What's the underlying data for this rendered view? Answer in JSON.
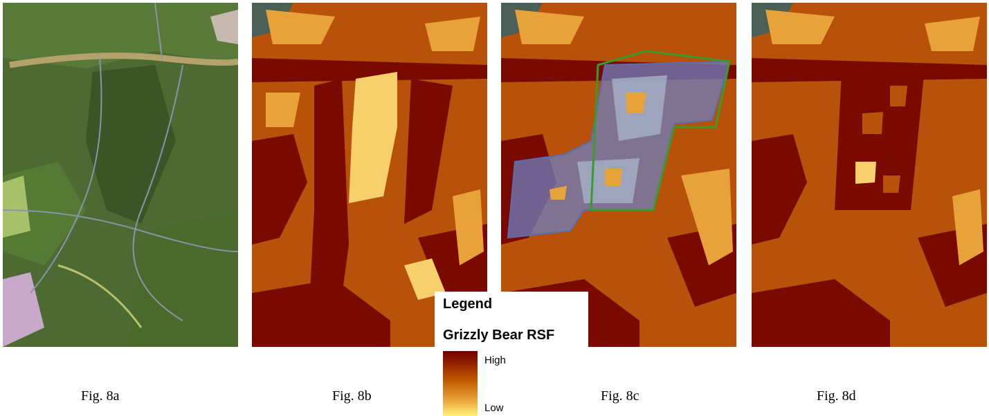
{
  "figures": [
    {
      "id": "a",
      "caption": "Fig. 8a",
      "kind": "satellite-image"
    },
    {
      "id": "b",
      "caption": "Fig. 8b",
      "kind": "rsf-map"
    },
    {
      "id": "c",
      "caption": "Fig. 8c",
      "kind": "rsf-map-with-overlay"
    },
    {
      "id": "d",
      "caption": "Fig. 8d",
      "kind": "rsf-map"
    }
  ],
  "legend": {
    "title": "Legend",
    "layer": "Grizzly Bear RSF",
    "high_label": "High",
    "low_label": "Low",
    "colors": {
      "high": "#6e0000",
      "mid": "#c15a00",
      "low": "#fff07a"
    }
  },
  "colors": {
    "rsf_dark": "#7a0a00",
    "rsf_mid": "#b8520a",
    "rsf_light": "#e8a23a",
    "rsf_pale": "#f7cf6b",
    "boundary": "#3a9a2a",
    "cut_fill": "#6e7fc0",
    "sat_green": "#46602e"
  }
}
